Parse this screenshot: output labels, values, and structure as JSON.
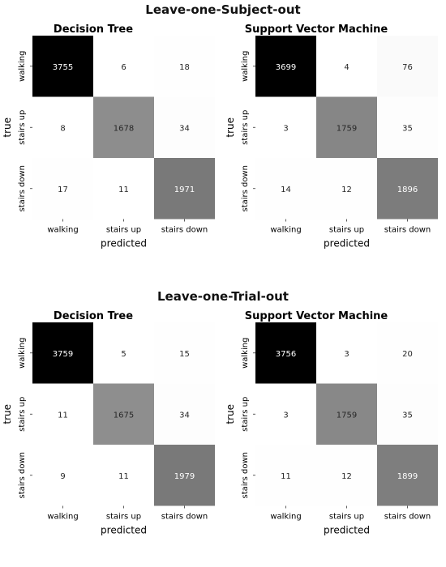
{
  "sections": [
    {
      "title": "Leave-one-Subject-out",
      "panels": [
        {
          "title": "Decision Tree",
          "classes": [
            "walking",
            "stairs up",
            "stairs down"
          ],
          "xlabel": "predicted",
          "ylabel": "true",
          "matrix": [
            [
              3755,
              6,
              18
            ],
            [
              8,
              1678,
              34
            ],
            [
              17,
              11,
              1971
            ]
          ]
        },
        {
          "title": "Support Vector Machine",
          "classes": [
            "walking",
            "stairs up",
            "stairs down"
          ],
          "xlabel": "predicted",
          "ylabel": "true",
          "matrix": [
            [
              3699,
              4,
              76
            ],
            [
              3,
              1759,
              35
            ],
            [
              14,
              12,
              1896
            ]
          ]
        }
      ]
    },
    {
      "title": "Leave-one-Trial-out",
      "panels": [
        {
          "title": "Decision Tree",
          "classes": [
            "walking",
            "stairs up",
            "stairs down"
          ],
          "xlabel": "predicted",
          "ylabel": "true",
          "matrix": [
            [
              3759,
              5,
              15
            ],
            [
              11,
              1675,
              34
            ],
            [
              9,
              11,
              1979
            ]
          ]
        },
        {
          "title": "Support Vector Machine",
          "classes": [
            "walking",
            "stairs up",
            "stairs down"
          ],
          "xlabel": "predicted",
          "ylabel": "true",
          "matrix": [
            [
              3756,
              3,
              20
            ],
            [
              3,
              1759,
              35
            ],
            [
              11,
              12,
              1899
            ]
          ]
        }
      ]
    }
  ],
  "chart_data": [
    {
      "type": "heatmap",
      "title": "Decision Tree",
      "group": "Leave-one-Subject-out",
      "x": [
        "walking",
        "stairs up",
        "stairs down"
      ],
      "y": [
        "walking",
        "stairs up",
        "stairs down"
      ],
      "values": [
        [
          3755,
          6,
          18
        ],
        [
          8,
          1678,
          34
        ],
        [
          17,
          11,
          1971
        ]
      ],
      "xlabel": "predicted",
      "ylabel": "true",
      "colormap": "Greys"
    },
    {
      "type": "heatmap",
      "title": "Support Vector Machine",
      "group": "Leave-one-Subject-out",
      "x": [
        "walking",
        "stairs up",
        "stairs down"
      ],
      "y": [
        "walking",
        "stairs up",
        "stairs down"
      ],
      "values": [
        [
          3699,
          4,
          76
        ],
        [
          3,
          1759,
          35
        ],
        [
          14,
          12,
          1896
        ]
      ],
      "xlabel": "predicted",
      "ylabel": "true",
      "colormap": "Greys"
    },
    {
      "type": "heatmap",
      "title": "Decision Tree",
      "group": "Leave-one-Trial-out",
      "x": [
        "walking",
        "stairs up",
        "stairs down"
      ],
      "y": [
        "walking",
        "stairs up",
        "stairs down"
      ],
      "values": [
        [
          3759,
          5,
          15
        ],
        [
          11,
          1675,
          34
        ],
        [
          9,
          11,
          1979
        ]
      ],
      "xlabel": "predicted",
      "ylabel": "true",
      "colormap": "Greys"
    },
    {
      "type": "heatmap",
      "title": "Support Vector Machine",
      "group": "Leave-one-Trial-out",
      "x": [
        "walking",
        "stairs up",
        "stairs down"
      ],
      "y": [
        "walking",
        "stairs up",
        "stairs down"
      ],
      "values": [
        [
          3756,
          3,
          20
        ],
        [
          3,
          1759,
          35
        ],
        [
          11,
          12,
          1899
        ]
      ],
      "xlabel": "predicted",
      "ylabel": "true",
      "colormap": "Greys"
    }
  ]
}
